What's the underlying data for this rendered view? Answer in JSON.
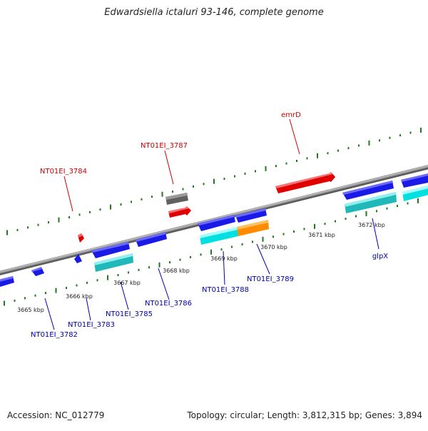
{
  "title": "Edwardsiella ictaluri 93-146, complete genome",
  "footer": {
    "accession": "Accession: NC_012779",
    "summary": "Topology: circular; Length: 3,812,315 bp; Genes: 3,894"
  },
  "colors": {
    "backbone": "#8a8a8a",
    "tick": "#1f7a1f",
    "forward_label": "#cc0000",
    "reverse_label": "#0000aa",
    "red": "#e00000",
    "gray": "#707070",
    "blue": "#1a1ae6",
    "cyan": "#00e5e5",
    "teal": "#20c0c0",
    "orange": "#ff8c00"
  },
  "scale_labels": [
    "3665 kbp",
    "3666 kbp",
    "3667 kbp",
    "3668 kbp",
    "3669 kbp",
    "3670 kbp",
    "3671 kbp",
    "3672 kbp"
  ],
  "forward_genes": [
    "NT01EI_3784",
    "NT01EI_3787",
    "emrD"
  ],
  "reverse_genes": [
    "NT01EI_3782",
    "NT01EI_3783",
    "NT01EI_3785",
    "NT01EI_3786",
    "NT01EI_3788",
    "NT01EI_3789",
    "glpX"
  ]
}
